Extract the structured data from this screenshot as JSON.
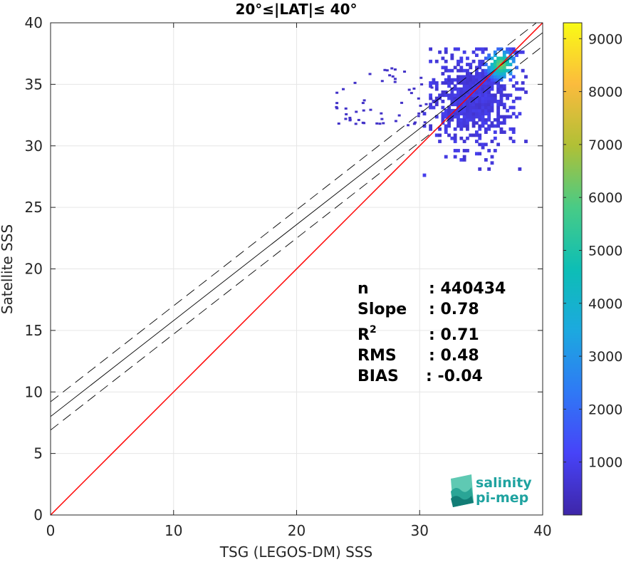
{
  "chart_data": {
    "type": "heatmap",
    "title": "20°≤|LAT|≤ 40°",
    "xlabel": "TSG (LEGOS-DM) SSS",
    "ylabel": "Satellite SSS",
    "xlim": [
      0,
      40
    ],
    "ylim": [
      0,
      40
    ],
    "xticks": [
      "0",
      "10",
      "20",
      "30",
      "40"
    ],
    "yticks": [
      "0",
      "5",
      "10",
      "15",
      "20",
      "25",
      "30",
      "35",
      "40"
    ],
    "grid": true,
    "stats": {
      "n_label": "n",
      "n_value": ": 440434",
      "slope_label": "Slope",
      "slope_value": ": 0.78",
      "r2_label": "R",
      "r2_sup": "2",
      "r2_value": ": 0.71",
      "rms_label": "RMS",
      "rms_value": ": 0.48",
      "bias_label": "BIAS",
      "bias_value": ": -0.04"
    },
    "lines": {
      "identity": {
        "slope": 1,
        "intercept": 0,
        "color": "#ff0000"
      },
      "fit": {
        "slope": 0.78,
        "intercept": 8.0,
        "color": "#000000"
      },
      "fit_upper": {
        "slope": 0.78,
        "intercept": 9.2,
        "color": "#000000"
      },
      "fit_lower": {
        "slope": 0.78,
        "intercept": 6.9,
        "color": "#000000"
      }
    },
    "density_core": {
      "x_range": [
        30.2,
        38.5
      ],
      "y_range": [
        27.3,
        37.8
      ],
      "peak": [
        36.5,
        36.5
      ]
    },
    "colorbar": {
      "min": 0,
      "max": 9300,
      "ticks": [
        "1000",
        "2000",
        "3000",
        "4000",
        "5000",
        "6000",
        "7000",
        "8000",
        "9000"
      ],
      "colormap": [
        "#3e26a8",
        "#4743f8",
        "#2f79f5",
        "#1ca9df",
        "#0dbeb5",
        "#48cb86",
        "#b0c036",
        "#fbbb3d",
        "#f9fb15"
      ]
    }
  },
  "logo": {
    "line1": "salinity",
    "line2": "pi-mep"
  }
}
